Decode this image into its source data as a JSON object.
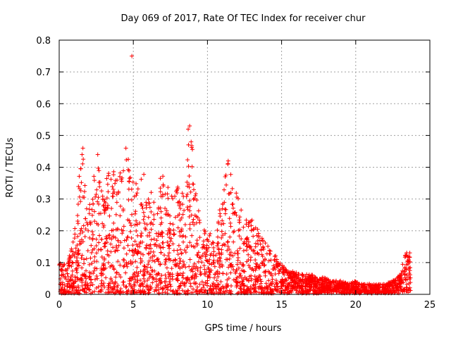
{
  "chart_data": {
    "type": "scatter",
    "title": "Day 069 of 2017, Rate Of TEC Index for receiver chur",
    "xlabel": "GPS time / hours",
    "ylabel": "ROTI / TECUs",
    "xlim": [
      0,
      25
    ],
    "ylim": [
      0,
      0.8
    ],
    "xticks": [
      0,
      5,
      10,
      15,
      20,
      25
    ],
    "xtick_labels": [
      "0",
      "5",
      "10",
      "15",
      "20",
      "25"
    ],
    "yticks": [
      0,
      0.1,
      0.2,
      0.3,
      0.4,
      0.5,
      0.6,
      0.7,
      0.8
    ],
    "ytick_labels": [
      "0",
      "0.1",
      "0.2",
      "0.3",
      "0.4",
      "0.5",
      "0.6",
      "0.7",
      "0.8"
    ],
    "grid": true,
    "marker": "plus",
    "color": "#ff0000",
    "series": [
      {
        "envelope": [
          [
            0.0,
            0.1
          ],
          [
            0.5,
            0.09
          ],
          [
            1.0,
            0.18
          ],
          [
            1.5,
            0.46
          ],
          [
            2.0,
            0.31
          ],
          [
            2.5,
            0.44
          ],
          [
            3.0,
            0.33
          ],
          [
            3.5,
            0.41
          ],
          [
            4.0,
            0.36
          ],
          [
            4.5,
            0.46
          ],
          [
            5.0,
            0.35
          ],
          [
            5.5,
            0.4
          ],
          [
            6.0,
            0.36
          ],
          [
            6.5,
            0.28
          ],
          [
            7.0,
            0.43
          ],
          [
            7.5,
            0.3
          ],
          [
            8.0,
            0.36
          ],
          [
            8.5,
            0.3
          ],
          [
            8.8,
            0.53
          ],
          [
            9.0,
            0.45
          ],
          [
            9.5,
            0.22
          ],
          [
            10.0,
            0.2
          ],
          [
            10.5,
            0.17
          ],
          [
            11.0,
            0.33
          ],
          [
            11.4,
            0.42
          ],
          [
            12.0,
            0.31
          ],
          [
            12.5,
            0.26
          ],
          [
            13.0,
            0.24
          ],
          [
            13.5,
            0.2
          ],
          [
            14.0,
            0.16
          ],
          [
            14.5,
            0.13
          ],
          [
            15.0,
            0.09
          ],
          [
            15.5,
            0.07
          ],
          [
            16.0,
            0.07
          ],
          [
            16.5,
            0.06
          ],
          [
            17.0,
            0.06
          ],
          [
            17.5,
            0.05
          ],
          [
            18.0,
            0.05
          ],
          [
            18.5,
            0.04
          ],
          [
            19.0,
            0.04
          ],
          [
            19.5,
            0.03
          ],
          [
            20.0,
            0.04
          ],
          [
            20.5,
            0.03
          ],
          [
            21.0,
            0.03
          ],
          [
            21.5,
            0.03
          ],
          [
            22.0,
            0.03
          ],
          [
            22.5,
            0.04
          ],
          [
            23.0,
            0.06
          ],
          [
            23.3,
            0.13
          ],
          [
            23.7,
            0.13
          ]
        ],
        "outliers": [
          [
            4.9,
            0.75
          ],
          [
            8.8,
            0.53
          ],
          [
            8.7,
            0.52
          ],
          [
            8.9,
            0.48
          ],
          [
            1.6,
            0.46
          ],
          [
            4.5,
            0.46
          ],
          [
            11.4,
            0.42
          ],
          [
            2.6,
            0.44
          ]
        ]
      }
    ]
  }
}
